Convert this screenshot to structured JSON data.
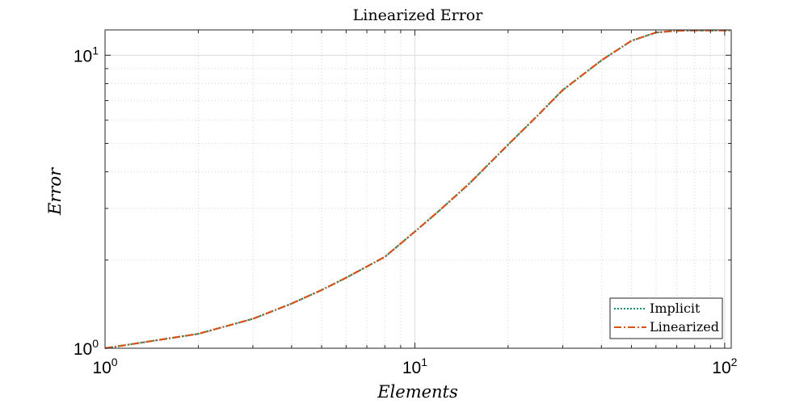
{
  "chart_data": {
    "type": "line",
    "title": "Linearized Error",
    "xlabel": "Elements",
    "ylabel": "Error",
    "xscale": "log",
    "yscale": "log",
    "xlim": [
      1,
      105
    ],
    "ylim": [
      1,
      12.2
    ],
    "grid": true,
    "legend_position": "bottom-right",
    "x_ticks": [
      {
        "value": 1,
        "base": "10",
        "exp": "0"
      },
      {
        "value": 10,
        "base": "10",
        "exp": "1"
      },
      {
        "value": 100,
        "base": "10",
        "exp": "2"
      }
    ],
    "y_ticks": [
      {
        "value": 1,
        "base": "10",
        "exp": "0"
      },
      {
        "value": 10,
        "base": "10",
        "exp": "1"
      }
    ],
    "x": [
      1,
      2,
      3,
      4,
      5,
      6,
      7,
      8,
      10,
      12,
      15,
      20,
      25,
      30,
      40,
      50,
      60,
      70,
      80,
      90,
      100,
      105
    ],
    "series": [
      {
        "name": "Implicit",
        "color": "#0f8f70",
        "style": "dotted",
        "values": [
          1.0,
          1.12,
          1.26,
          1.42,
          1.58,
          1.74,
          1.9,
          2.05,
          2.5,
          2.95,
          3.65,
          4.95,
          6.25,
          7.6,
          9.6,
          11.2,
          11.95,
          12.12,
          12.15,
          12.15,
          12.15,
          12.15
        ]
      },
      {
        "name": "Linearized",
        "color": "#d95319",
        "style": "dashdot",
        "values": [
          1.0,
          1.12,
          1.26,
          1.42,
          1.58,
          1.74,
          1.9,
          2.05,
          2.5,
          2.95,
          3.65,
          4.95,
          6.25,
          7.6,
          9.6,
          11.2,
          11.95,
          12.12,
          12.15,
          12.15,
          12.15,
          12.15
        ]
      }
    ]
  }
}
